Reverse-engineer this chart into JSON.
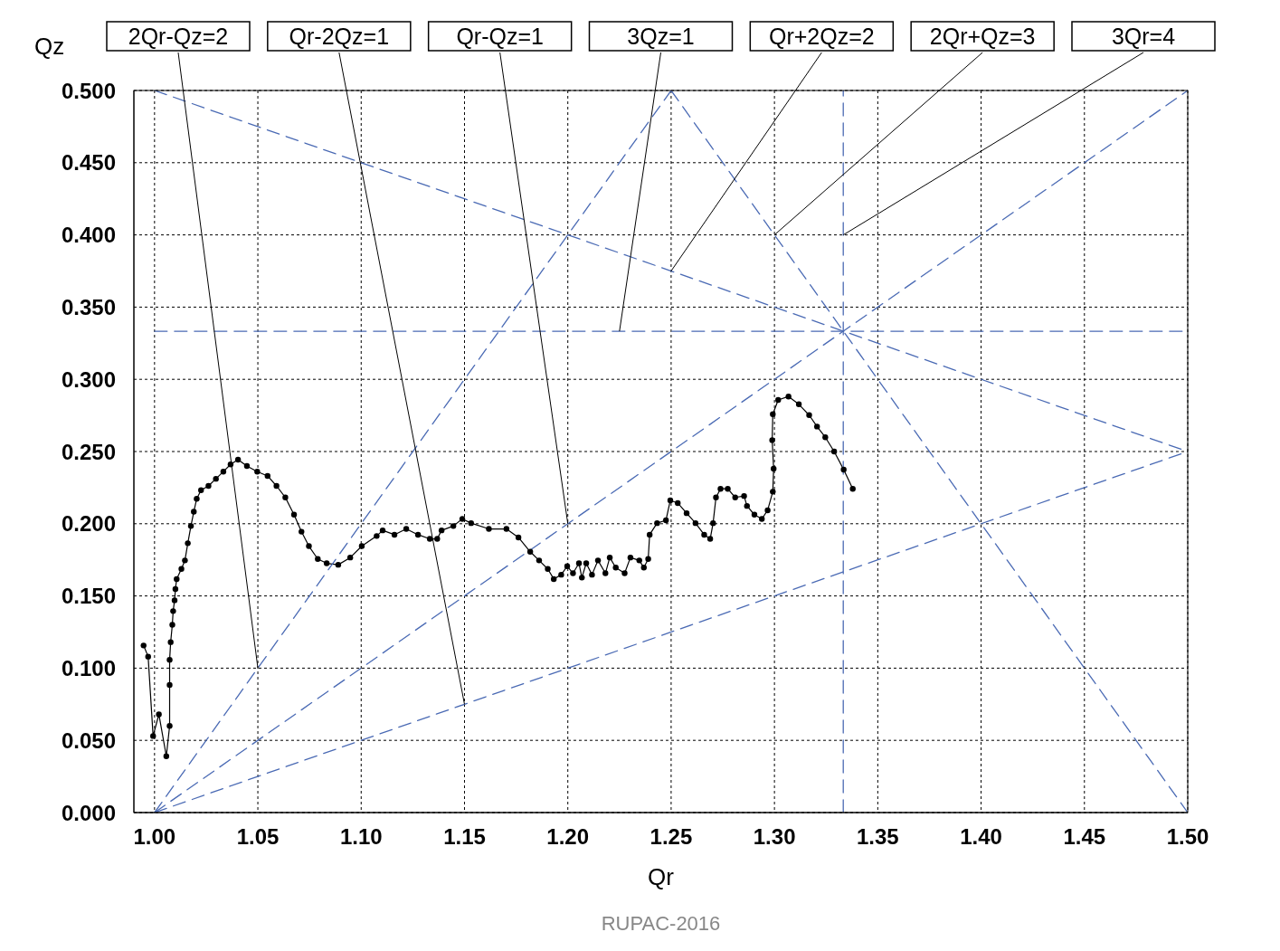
{
  "chart_data": {
    "type": "line",
    "xlabel": "Qr",
    "ylabel": "Qz",
    "xlim": [
      0.99,
      1.5
    ],
    "xticks": [
      {
        "value": 1.0,
        "label": "1.00"
      },
      {
        "value": 1.05,
        "label": "1.05"
      },
      {
        "value": 1.1,
        "label": "1.10"
      },
      {
        "value": 1.15,
        "label": "1.15"
      },
      {
        "value": 1.2,
        "label": "1.20"
      },
      {
        "value": 1.25,
        "label": "1.25"
      },
      {
        "value": 1.3,
        "label": "1.30"
      },
      {
        "value": 1.35,
        "label": "1.35"
      },
      {
        "value": 1.4,
        "label": "1.40"
      },
      {
        "value": 1.45,
        "label": "1.45"
      },
      {
        "value": 1.5,
        "label": "1.50"
      }
    ],
    "ylim": [
      0,
      0.5
    ],
    "yticks": [
      {
        "value": 0,
        "label": "0.000"
      },
      {
        "value": 0.05,
        "label": "0.050"
      },
      {
        "value": 0.1,
        "label": "0.100"
      },
      {
        "value": 0.15,
        "label": "0.150"
      },
      {
        "value": 0.2,
        "label": "0.200"
      },
      {
        "value": 0.25,
        "label": "0.250"
      },
      {
        "value": 0.3,
        "label": "0.300"
      },
      {
        "value": 0.35,
        "label": "0.350"
      },
      {
        "value": 0.4,
        "label": "0.400"
      },
      {
        "value": 0.45,
        "label": "0.450"
      },
      {
        "value": 0.5,
        "label": "0.500"
      }
    ],
    "grid": true,
    "series": [
      {
        "color": "#000000",
        "marker": "circle",
        "line_style": "solid",
        "x": [
          0.9947,
          0.9969,
          0.9993,
          1.0021,
          1.0057,
          1.0073,
          1.0073,
          1.0073,
          1.0078,
          1.0086,
          1.009,
          1.0097,
          1.0101,
          1.0107,
          1.013,
          1.0147,
          1.0161,
          1.0176,
          1.019,
          1.0204,
          1.0225,
          1.0261,
          1.0297,
          1.0333,
          1.0368,
          1.0404,
          1.0447,
          1.0497,
          1.0547,
          1.059,
          1.0633,
          1.0675,
          1.0711,
          1.0747,
          1.079,
          1.0833,
          1.0889,
          1.0947,
          1.1003,
          1.1075,
          1.1104,
          1.1161,
          1.1218,
          1.1275,
          1.1332,
          1.1368,
          1.1389,
          1.1446,
          1.1489,
          1.1532,
          1.1618,
          1.1703,
          1.1761,
          1.1818,
          1.1861,
          1.1903,
          1.1932,
          1.1968,
          1.1997,
          1.2025,
          1.2054,
          1.2068,
          1.2089,
          1.2117,
          1.2146,
          1.2182,
          1.2203,
          1.2232,
          1.2275,
          1.2303,
          1.2346,
          1.2368,
          1.2389,
          1.2396,
          1.2432,
          1.2475,
          1.2496,
          1.2532,
          1.2575,
          1.2618,
          1.266,
          1.2689,
          1.2703,
          1.2717,
          1.2739,
          1.2774,
          1.281,
          1.2853,
          1.2867,
          1.2903,
          1.2939,
          1.2967,
          1.2992,
          1.2996,
          1.2989,
          1.2992,
          1.3018,
          1.3068,
          1.3118,
          1.3168,
          1.3206,
          1.3246,
          1.3289,
          1.3335,
          1.3379
        ],
        "values": [
          0.1157,
          0.108,
          0.053,
          0.068,
          0.039,
          0.06,
          0.0883,
          0.1058,
          0.118,
          0.13,
          0.1395,
          0.147,
          0.1548,
          0.1617,
          0.1687,
          0.1746,
          0.1865,
          0.1984,
          0.2083,
          0.2173,
          0.2232,
          0.2262,
          0.2311,
          0.2361,
          0.2411,
          0.2444,
          0.24,
          0.2361,
          0.2331,
          0.2262,
          0.2182,
          0.2063,
          0.1945,
          0.1845,
          0.1756,
          0.1726,
          0.1716,
          0.1766,
          0.1845,
          0.1915,
          0.1954,
          0.1924,
          0.1964,
          0.1924,
          0.1895,
          0.1895,
          0.1954,
          0.1984,
          0.2033,
          0.2004,
          0.1964,
          0.1964,
          0.1905,
          0.1806,
          0.1746,
          0.1687,
          0.1617,
          0.1647,
          0.1706,
          0.1657,
          0.1726,
          0.1627,
          0.1726,
          0.1647,
          0.1746,
          0.1657,
          0.1766,
          0.1696,
          0.1657,
          0.1766,
          0.1746,
          0.1696,
          0.1756,
          0.1924,
          0.2004,
          0.2024,
          0.2162,
          0.2143,
          0.2073,
          0.2004,
          0.1924,
          0.1895,
          0.2004,
          0.2182,
          0.2242,
          0.2242,
          0.2182,
          0.2192,
          0.2123,
          0.2063,
          0.2033,
          0.2093,
          0.2222,
          0.2381,
          0.2579,
          0.2758,
          0.2857,
          0.2881,
          0.2827,
          0.2752,
          0.2673,
          0.2599,
          0.25,
          0.2375,
          0.2242
        ]
      },
      {
        "type": "line",
        "color": "#4a6ab4",
        "marker": "none",
        "line_style": "dashed",
        "x": [
          1.0,
          1.25
        ],
        "values": [
          0,
          0.5
        ]
      },
      {
        "type": "line",
        "color": "#4a6ab4",
        "marker": "none",
        "line_style": "dashed",
        "x": [
          1.0,
          1.5
        ],
        "values": [
          0,
          0.25
        ]
      },
      {
        "type": "line",
        "color": "#4a6ab4",
        "marker": "none",
        "line_style": "dashed",
        "x": [
          1.0,
          1.5
        ],
        "values": [
          0,
          0.5
        ]
      },
      {
        "type": "line",
        "color": "#4a6ab4",
        "marker": "none",
        "line_style": "dashed",
        "x": [
          1.0,
          1.5
        ],
        "values": [
          0.3333,
          0.3333
        ]
      },
      {
        "type": "line",
        "color": "#4a6ab4",
        "marker": "none",
        "line_style": "dashed",
        "x": [
          1.0,
          1.5
        ],
        "values": [
          0.5,
          0.25
        ]
      },
      {
        "type": "line",
        "color": "#4a6ab4",
        "marker": "none",
        "line_style": "dashed",
        "x": [
          1.25,
          1.5
        ],
        "values": [
          0.5,
          0
        ]
      },
      {
        "type": "line",
        "color": "#4a6ab4",
        "marker": "none",
        "line_style": "dashed",
        "x": [
          1.3333,
          1.3333
        ],
        "values": [
          0,
          0.5
        ]
      }
    ],
    "annotations": [
      {
        "text": "2Qr-Qz=2",
        "x": 1.05,
        "y": 0.1
      },
      {
        "text": "Qr-2Qz=1",
        "x": 1.15,
        "y": 0.075
      },
      {
        "text": "Qr-Qz=1",
        "x": 1.2,
        "y": 0.2
      },
      {
        "text": "3Qz=1",
        "x": 1.225,
        "y": 0.3333
      },
      {
        "text": "Qr+2Qz=2",
        "x": 1.25,
        "y": 0.375
      },
      {
        "text": "2Qr+Qz=3",
        "x": 1.3,
        "y": 0.4
      },
      {
        "text": "3Qr=4",
        "x": 1.3333,
        "y": 0.4
      },
      "RUPAC-2016"
    ]
  }
}
